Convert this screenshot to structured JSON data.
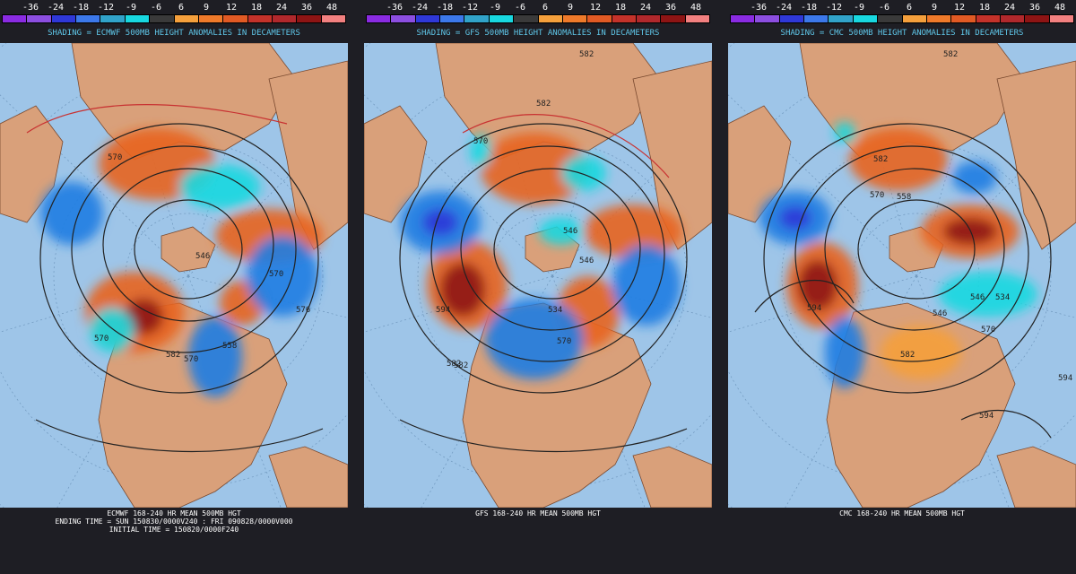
{
  "legend": {
    "values": [
      "-36",
      "-24",
      "-18",
      "-12",
      "-9",
      "-6",
      "6",
      "9",
      "12",
      "18",
      "24",
      "36",
      "48"
    ],
    "colors": [
      "#8a2be2",
      "#8c4ee0",
      "#2f38d8",
      "#3c78ea",
      "#31a3c9",
      "#18d8e0",
      "#3a3a3a",
      "#f5a03c",
      "#ef7a2a",
      "#e15a24",
      "#c4322a",
      "#b0282c",
      "#8e1414",
      "#f28080"
    ]
  },
  "palette": {
    "background": "#1e1e24",
    "ocean": "#9ec5e8",
    "land": "#d9a07a",
    "positive_anomaly": "#e8641e",
    "negative_anomaly": "#1e7de2",
    "label_text": "#5fc6e8"
  },
  "panels": [
    {
      "shading_label": "SHADING = ECMWF 500MB HEIGHT ANOMALIES IN DECAMETERS",
      "footer_title": "ECMWF 168-240 HR MEAN 500MB HGT",
      "footer_line2": "ENDING TIME = SUN 150830/0000V240 : FRI 090828/0000V000",
      "footer_line3": "INITIAL TIME = 150820/0000F240",
      "contour_labels": [
        "570",
        "582",
        "570",
        "570",
        "546",
        "558",
        "570",
        "576"
      ]
    },
    {
      "shading_label": "SHADING = GFS 500MB HEIGHT ANOMALIES IN DECAMETERS",
      "footer_title": "GFS 168-240 HR MEAN 500MB HGT",
      "contour_labels": [
        "582",
        "582",
        "570",
        "546",
        "534",
        "546",
        "582",
        "594",
        "582",
        "570"
      ]
    },
    {
      "shading_label": "SHADING = CMC 500MB HEIGHT ANOMALIES IN DECAMETERS",
      "footer_title": "CMC 168-240 HR MEAN 500MB HGT",
      "contour_labels": [
        "582",
        "582",
        "570",
        "558",
        "594",
        "546",
        "546",
        "570",
        "582",
        "594",
        "594",
        "534"
      ]
    }
  ]
}
